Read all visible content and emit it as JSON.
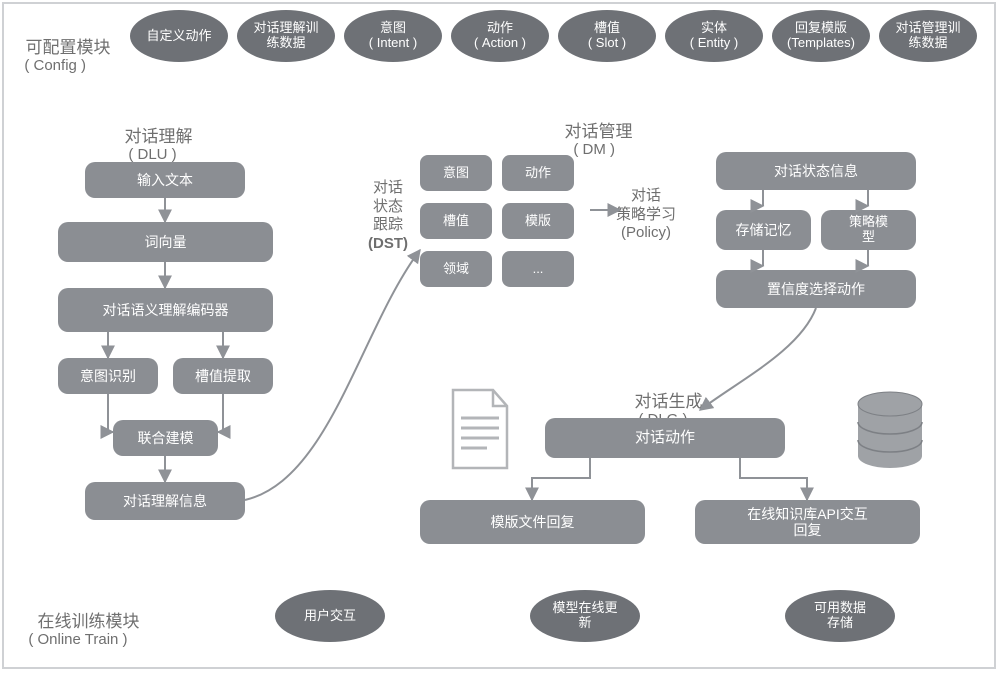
{
  "colors": {
    "oval_fill": "#6e7176",
    "box_fill": "#8b8e93",
    "box_dark": "#7d8085",
    "text_gray": "#6f6f6f",
    "arrow": "#8f9297",
    "border": "#a9abaf"
  },
  "fontsizes": {
    "section_label": 17,
    "section_sub": 15,
    "oval_top": 13,
    "node": 14,
    "node_small": 13,
    "side_label": 15
  },
  "config": {
    "title_cn": "可配置模块",
    "title_en": "( Config )",
    "items": [
      "自定义动作",
      "对话理解训\n练数据",
      "意图\n( Intent )",
      "动作\n( Action )",
      "槽值\n( Slot )",
      "实体\n( Entity )",
      "回复模版\n(Templates)",
      "对话管理训\n练数据"
    ]
  },
  "dlu": {
    "title_cn": "对话理解",
    "title_en": "( DLU )",
    "nodes": {
      "input": "输入文本",
      "embed": "词向量",
      "encoder": "对话语义理解编码器",
      "intent": "意图识别",
      "slot": "槽值提取",
      "joint": "联合建模",
      "info": "对话理解信息"
    }
  },
  "dm": {
    "title_cn": "对话管理",
    "title_en": "( DM )",
    "dst": {
      "label_cn": "对话\n状态\n跟踪",
      "label_en": "(DST)",
      "cells": [
        "意图",
        "动作",
        "槽值",
        "模版",
        "领域",
        "..."
      ]
    },
    "policy": {
      "label_cn": "对话\n策略学习",
      "label_en": "(Policy)",
      "state_info": "对话状态信息",
      "memory": "存储记忆",
      "model": "策略模\n型",
      "select": "置信度选择动作"
    }
  },
  "dlg": {
    "title_cn": "对话生成",
    "title_en": "( DLG )",
    "action": "对话动作",
    "template_reply": "模版文件回复",
    "api_reply": "在线知识库API交互\n回复"
  },
  "online": {
    "title_cn": "在线训练模块",
    "title_en": "( Online Train )",
    "items": [
      "用户交互",
      "模型在线更\n新",
      "可用数据\n存储"
    ]
  }
}
